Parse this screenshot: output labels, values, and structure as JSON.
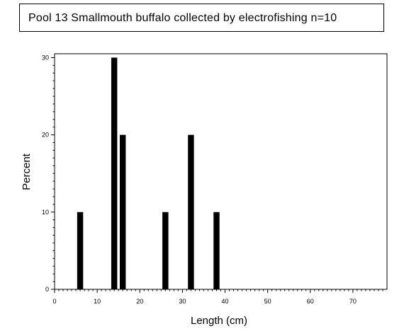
{
  "chart_data": {
    "type": "bar",
    "title": "Pool 13 Smallmouth buffalo collected by electrofishing n=10",
    "xlabel": "Length (cm)",
    "ylabel": "Percent",
    "x": [
      6,
      14,
      16,
      26,
      32,
      38
    ],
    "values": [
      10,
      30,
      20,
      10,
      20,
      10
    ],
    "xlim": [
      0,
      78
    ],
    "ylim": [
      0,
      30.5
    ],
    "xticks": [
      0,
      10,
      20,
      30,
      40,
      50,
      60,
      70
    ],
    "yticks": [
      0,
      10,
      20,
      30
    ],
    "grid": false,
    "legend": "none",
    "bar_color": "#000000"
  }
}
